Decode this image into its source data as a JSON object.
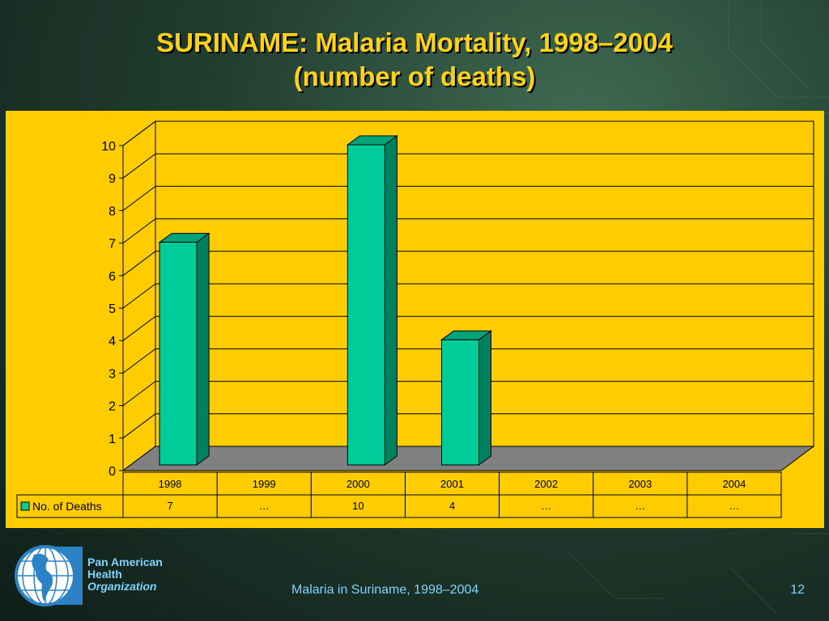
{
  "slide": {
    "title_line1": "SURINAME: Malaria Mortality, 1998–2004",
    "title_line2": "(number of deaths)",
    "footer_caption": "Malaria in Suriname, 1998–2004",
    "page_number": "12",
    "org": {
      "line1": "Pan American",
      "line2": "Health",
      "line3": "Organization"
    }
  },
  "colors": {
    "title": "#ffd21a",
    "panel": "#ffcc00",
    "bar": "#00cc99",
    "floor": "#808080",
    "footer": "#7fd3ff"
  },
  "chart_data": {
    "type": "bar",
    "categories": [
      "1998",
      "1999",
      "2000",
      "2001",
      "2002",
      "2003",
      "2004"
    ],
    "series": [
      {
        "name": "No. of Deaths",
        "values": [
          7,
          null,
          10,
          4,
          null,
          null,
          null
        ]
      }
    ],
    "table_values": [
      "7",
      "…",
      "10",
      "4",
      "…",
      "…",
      "…"
    ],
    "yticks": [
      "0",
      "1",
      "2",
      "3",
      "4",
      "5",
      "6",
      "7",
      "8",
      "9",
      "10"
    ],
    "ylim": [
      0,
      10
    ],
    "grid": true,
    "legend": "data-table-left"
  }
}
